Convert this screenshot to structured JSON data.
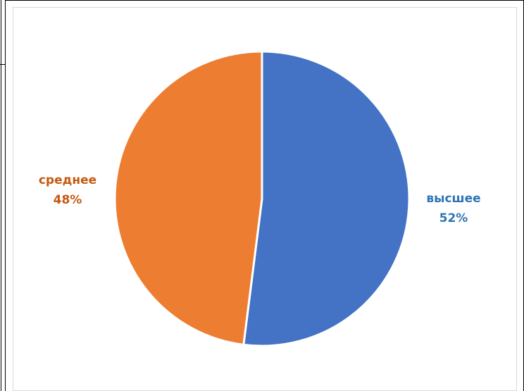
{
  "chart_data": {
    "type": "pie",
    "title": "",
    "categories": [
      "высшее",
      "среднее"
    ],
    "values": [
      52,
      48
    ],
    "value_labels": [
      "52%",
      "48%"
    ],
    "colors": [
      "#4472C4",
      "#ED7D31"
    ],
    "label_colors": [
      "#2E75B6",
      "#C55A11"
    ],
    "legend": "none",
    "start_angle_deg": 0,
    "direction": "clockwise"
  }
}
